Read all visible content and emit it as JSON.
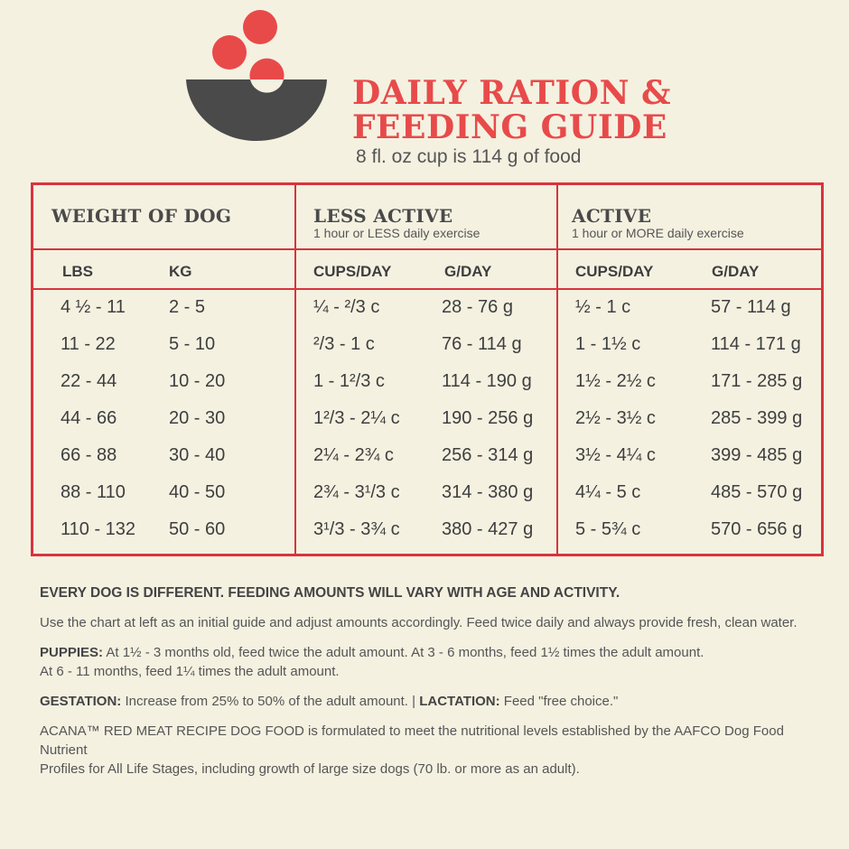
{
  "title_line1": "DAILY RATION &",
  "title_line2": "FEEDING GUIDE",
  "subtitle": "8 fl. oz cup is 114 g of food",
  "colors": {
    "accent": "#e84a4a",
    "border": "#d9333d",
    "bowl": "#4a4a4a",
    "background": "#f4f1e1"
  },
  "table": {
    "groups": [
      {
        "label": "WEIGHT OF DOG",
        "sub": ""
      },
      {
        "label": "LESS ACTIVE",
        "sub": "1 hour or LESS daily exercise"
      },
      {
        "label": "ACTIVE",
        "sub": "1 hour or MORE daily exercise"
      }
    ],
    "columns": [
      "LBS",
      "KG",
      "CUPS/DAY",
      "G/DAY",
      "CUPS/DAY",
      "G/DAY"
    ],
    "rows": [
      [
        "4 ½ - 11",
        "2 - 5",
        "¼ - ²/3 c",
        "28 - 76 g",
        "½ - 1 c",
        "57 - 114 g"
      ],
      [
        "11 - 22",
        "5 - 10",
        "²/3 - 1 c",
        "76 - 114 g",
        "1 - 1½ c",
        "114 - 171 g"
      ],
      [
        "22 - 44",
        "10 - 20",
        "1 - 1²/3 c",
        "114 - 190 g",
        "1½ - 2½ c",
        "171 - 285 g"
      ],
      [
        "44 - 66",
        "20 - 30",
        "1²/3 - 2¼ c",
        "190 - 256 g",
        "2½ - 3½ c",
        "285 - 399 g"
      ],
      [
        "66 - 88",
        "30 - 40",
        "2¼ - 2¾ c",
        "256 - 314 g",
        "3½ - 4¼ c",
        "399 - 485 g"
      ],
      [
        "88 - 110",
        "40 - 50",
        "2¾ - 3¹/3 c",
        "314 - 380 g",
        "4¼ - 5 c",
        "485 - 570 g"
      ],
      [
        "110 - 132",
        "50 - 60",
        "3¹/3 - 3¾ c",
        "380 - 427 g",
        "5 - 5¾ c",
        "570 - 656 g"
      ]
    ]
  },
  "notes": {
    "lead": "EVERY DOG IS DIFFERENT. FEEDING AMOUNTS WILL VARY WITH AGE AND ACTIVITY.",
    "intro": "Use the chart at left as an initial guide and adjust amounts accordingly. Feed twice daily and always provide fresh, clean water.",
    "puppies_label": "PUPPIES:",
    "puppies_text": " At 1½ - 3 months old, feed twice the adult amount. At 3 - 6 months, feed 1½ times the adult amount.",
    "puppies_text2": "At 6 - 11 months, feed 1¼ times the adult amount.",
    "gestation_label": "GESTATION:",
    "gestation_text": " Increase from 25% to 50% of the adult amount. | ",
    "lactation_label": "LACTATION:",
    "lactation_text": " Feed \"free choice.\"",
    "acana_line1": "ACANA™ RED MEAT RECIPE DOG FOOD is formulated to meet the nutritional levels established by the AAFCO Dog Food Nutrient",
    "acana_line2": "Profiles for All Life Stages, including growth of large size dogs (70 lb. or more as an adult)."
  }
}
